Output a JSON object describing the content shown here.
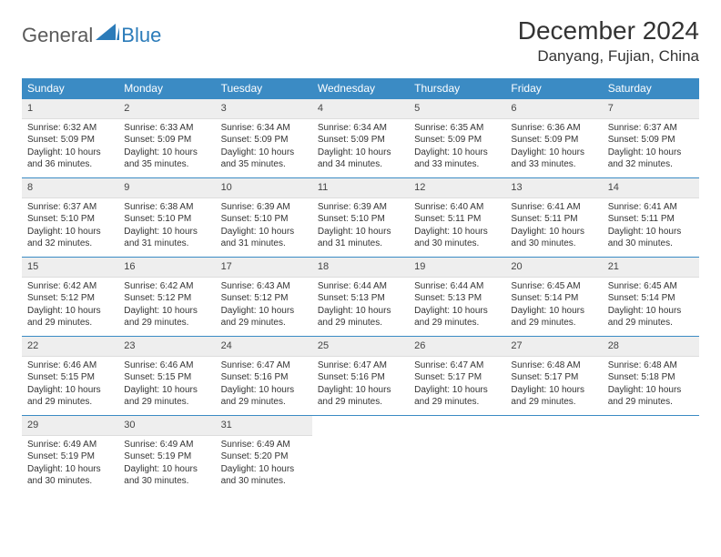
{
  "logo": {
    "general": "General",
    "blue": "Blue"
  },
  "title": "December 2024",
  "location": "Danyang, Fujian, China",
  "colors": {
    "header_bg": "#3b8bc4",
    "header_text": "#ffffff",
    "daynum_bg": "#eeeeee",
    "border": "#3b8bc4",
    "logo_general": "#5a5a5a",
    "logo_blue": "#2b7bb9"
  },
  "weekdays": [
    "Sunday",
    "Monday",
    "Tuesday",
    "Wednesday",
    "Thursday",
    "Friday",
    "Saturday"
  ],
  "days": [
    {
      "n": 1,
      "sunrise": "6:32 AM",
      "sunset": "5:09 PM",
      "daylight": "10 hours and 36 minutes."
    },
    {
      "n": 2,
      "sunrise": "6:33 AM",
      "sunset": "5:09 PM",
      "daylight": "10 hours and 35 minutes."
    },
    {
      "n": 3,
      "sunrise": "6:34 AM",
      "sunset": "5:09 PM",
      "daylight": "10 hours and 35 minutes."
    },
    {
      "n": 4,
      "sunrise": "6:34 AM",
      "sunset": "5:09 PM",
      "daylight": "10 hours and 34 minutes."
    },
    {
      "n": 5,
      "sunrise": "6:35 AM",
      "sunset": "5:09 PM",
      "daylight": "10 hours and 33 minutes."
    },
    {
      "n": 6,
      "sunrise": "6:36 AM",
      "sunset": "5:09 PM",
      "daylight": "10 hours and 33 minutes."
    },
    {
      "n": 7,
      "sunrise": "6:37 AM",
      "sunset": "5:09 PM",
      "daylight": "10 hours and 32 minutes."
    },
    {
      "n": 8,
      "sunrise": "6:37 AM",
      "sunset": "5:10 PM",
      "daylight": "10 hours and 32 minutes."
    },
    {
      "n": 9,
      "sunrise": "6:38 AM",
      "sunset": "5:10 PM",
      "daylight": "10 hours and 31 minutes."
    },
    {
      "n": 10,
      "sunrise": "6:39 AM",
      "sunset": "5:10 PM",
      "daylight": "10 hours and 31 minutes."
    },
    {
      "n": 11,
      "sunrise": "6:39 AM",
      "sunset": "5:10 PM",
      "daylight": "10 hours and 31 minutes."
    },
    {
      "n": 12,
      "sunrise": "6:40 AM",
      "sunset": "5:11 PM",
      "daylight": "10 hours and 30 minutes."
    },
    {
      "n": 13,
      "sunrise": "6:41 AM",
      "sunset": "5:11 PM",
      "daylight": "10 hours and 30 minutes."
    },
    {
      "n": 14,
      "sunrise": "6:41 AM",
      "sunset": "5:11 PM",
      "daylight": "10 hours and 30 minutes."
    },
    {
      "n": 15,
      "sunrise": "6:42 AM",
      "sunset": "5:12 PM",
      "daylight": "10 hours and 29 minutes."
    },
    {
      "n": 16,
      "sunrise": "6:42 AM",
      "sunset": "5:12 PM",
      "daylight": "10 hours and 29 minutes."
    },
    {
      "n": 17,
      "sunrise": "6:43 AM",
      "sunset": "5:12 PM",
      "daylight": "10 hours and 29 minutes."
    },
    {
      "n": 18,
      "sunrise": "6:44 AM",
      "sunset": "5:13 PM",
      "daylight": "10 hours and 29 minutes."
    },
    {
      "n": 19,
      "sunrise": "6:44 AM",
      "sunset": "5:13 PM",
      "daylight": "10 hours and 29 minutes."
    },
    {
      "n": 20,
      "sunrise": "6:45 AM",
      "sunset": "5:14 PM",
      "daylight": "10 hours and 29 minutes."
    },
    {
      "n": 21,
      "sunrise": "6:45 AM",
      "sunset": "5:14 PM",
      "daylight": "10 hours and 29 minutes."
    },
    {
      "n": 22,
      "sunrise": "6:46 AM",
      "sunset": "5:15 PM",
      "daylight": "10 hours and 29 minutes."
    },
    {
      "n": 23,
      "sunrise": "6:46 AM",
      "sunset": "5:15 PM",
      "daylight": "10 hours and 29 minutes."
    },
    {
      "n": 24,
      "sunrise": "6:47 AM",
      "sunset": "5:16 PM",
      "daylight": "10 hours and 29 minutes."
    },
    {
      "n": 25,
      "sunrise": "6:47 AM",
      "sunset": "5:16 PM",
      "daylight": "10 hours and 29 minutes."
    },
    {
      "n": 26,
      "sunrise": "6:47 AM",
      "sunset": "5:17 PM",
      "daylight": "10 hours and 29 minutes."
    },
    {
      "n": 27,
      "sunrise": "6:48 AM",
      "sunset": "5:17 PM",
      "daylight": "10 hours and 29 minutes."
    },
    {
      "n": 28,
      "sunrise": "6:48 AM",
      "sunset": "5:18 PM",
      "daylight": "10 hours and 29 minutes."
    },
    {
      "n": 29,
      "sunrise": "6:49 AM",
      "sunset": "5:19 PM",
      "daylight": "10 hours and 30 minutes."
    },
    {
      "n": 30,
      "sunrise": "6:49 AM",
      "sunset": "5:19 PM",
      "daylight": "10 hours and 30 minutes."
    },
    {
      "n": 31,
      "sunrise": "6:49 AM",
      "sunset": "5:20 PM",
      "daylight": "10 hours and 30 minutes."
    }
  ],
  "labels": {
    "sunrise_prefix": "Sunrise: ",
    "sunset_prefix": "Sunset: ",
    "daylight_prefix": "Daylight: "
  },
  "layout": {
    "first_day_column": 0,
    "total_days": 31,
    "columns": 7
  }
}
